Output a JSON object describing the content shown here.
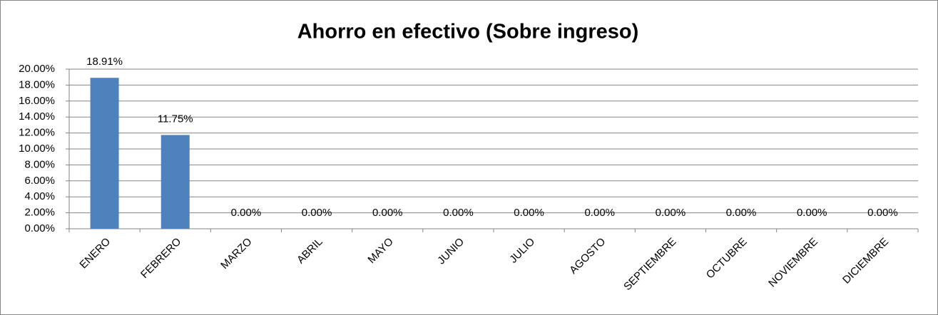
{
  "chart_data": {
    "type": "bar",
    "title": "Ahorro en efectivo (Sobre ingreso)",
    "categories": [
      "ENERO",
      "FEBRERO",
      "MARZO",
      "ABRIL",
      "MAYO",
      "JUNIO",
      "JULIO",
      "AGOSTO",
      "SEPTIEMBRE",
      "OCTUBRE",
      "NOVIEMBRE",
      "DICIEMBRE"
    ],
    "values": [
      18.91,
      11.75,
      0,
      0,
      0,
      0,
      0,
      0,
      0,
      0,
      0,
      0
    ],
    "value_labels": [
      "18.91%",
      "11.75%",
      "0.00%",
      "0.00%",
      "0.00%",
      "0.00%",
      "0.00%",
      "0.00%",
      "0.00%",
      "0.00%",
      "0.00%",
      "0.00%"
    ],
    "color": "#4f81bd",
    "ylim": [
      0,
      20
    ],
    "yticks": [
      {
        "value": 0,
        "label": "0.00%"
      },
      {
        "value": 2,
        "label": "2.00%"
      },
      {
        "value": 4,
        "label": "4.00%"
      },
      {
        "value": 6,
        "label": "6.00%"
      },
      {
        "value": 8,
        "label": "8.00%"
      },
      {
        "value": 10,
        "label": "10.00%"
      },
      {
        "value": 12,
        "label": "12.00%"
      },
      {
        "value": 14,
        "label": "14.00%"
      },
      {
        "value": 16,
        "label": "16.00%"
      },
      {
        "value": 18,
        "label": "18.00%"
      },
      {
        "value": 20,
        "label": "20.00%"
      }
    ],
    "grid": true
  }
}
